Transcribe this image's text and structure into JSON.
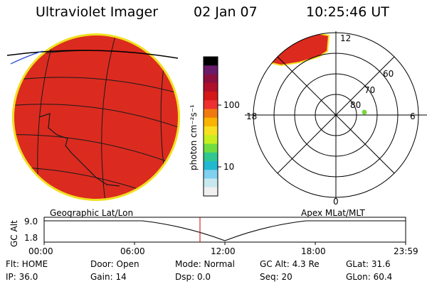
{
  "header": {
    "instrument": "Ultraviolet Imager",
    "date": "02 Jan 07",
    "time": "10:25:46 UT"
  },
  "colorbar": {
    "unit_label": "photon cm⁻²s⁻¹",
    "ticks": [
      "100",
      "10"
    ],
    "colors": [
      "#000000",
      "#6a1b6a",
      "#8b1040",
      "#b0102a",
      "#d41818",
      "#ee3030",
      "#f07a10",
      "#f8b400",
      "#f8e020",
      "#c8ee20",
      "#70dc40",
      "#30c890",
      "#20b8d0",
      "#80d0f0",
      "#c8e8f0",
      "#f0f0f0"
    ]
  },
  "left_panel": {
    "caption": "Geographic Lat/Lon",
    "image_color": "#dd2a1e",
    "rim_color": "#f0e020"
  },
  "right_panel": {
    "caption": "Apex MLat/MLT",
    "mlt_labels": {
      "top": "12",
      "left": "18",
      "right": "6",
      "bottom": "0"
    },
    "lat_labels": [
      "60",
      "70",
      "80"
    ]
  },
  "altitude_plot": {
    "ylabel": "GC Alt",
    "yticks": [
      "9.0",
      "1.8"
    ],
    "xticks": [
      "00:00",
      "06:00",
      "12:00",
      "18:00",
      "23:59"
    ],
    "current_time_marker_color": "#cc0000"
  },
  "status": {
    "flt": "Flt: HOME",
    "ip": "IP: 36.0",
    "door": "Door: Open",
    "gain": "Gain: 14",
    "mode": "Mode: Normal",
    "dsp": "Dsp:      0.0",
    "gc_alt": "GC Alt: 4.3 Re",
    "seq": "Seq: 20",
    "glat": "GLat:  31.6",
    "glon": "GLon:  60.4"
  }
}
